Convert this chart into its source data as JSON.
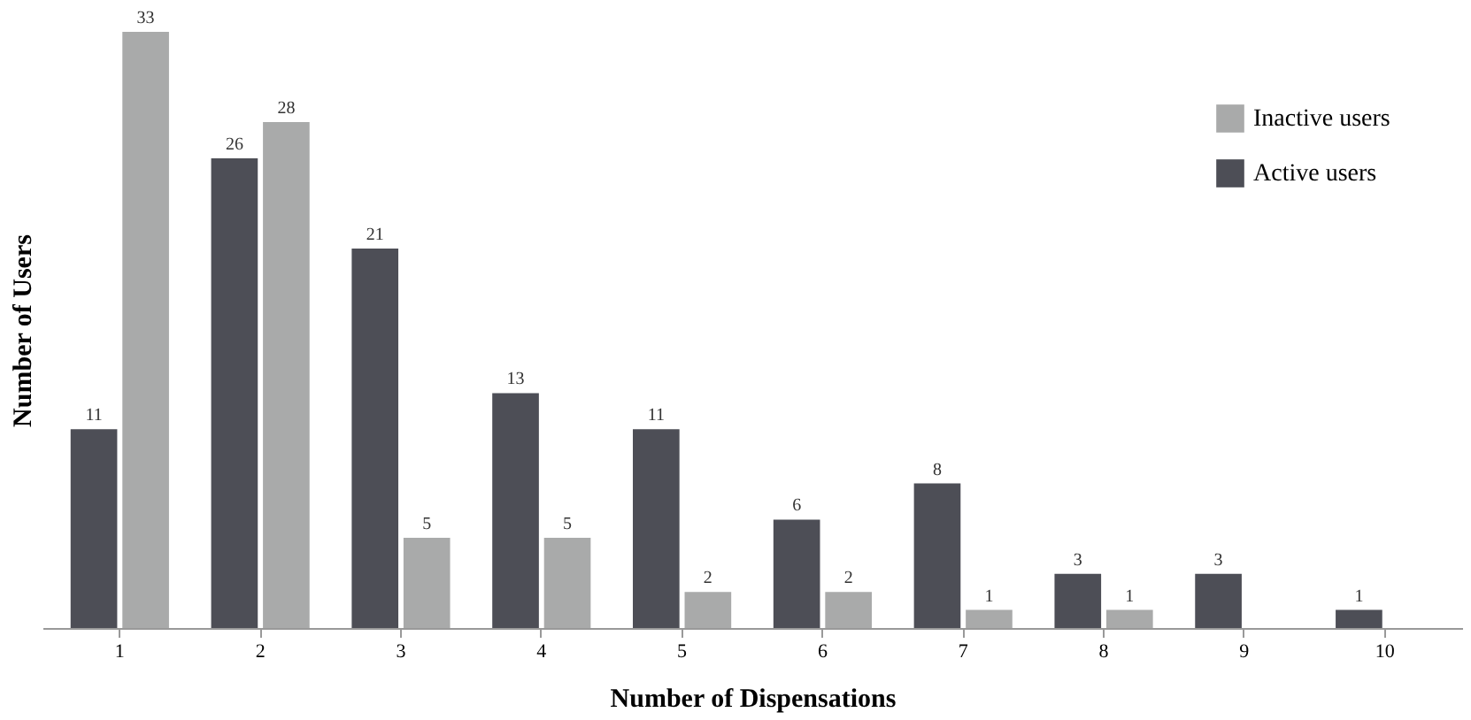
{
  "chart_data": {
    "type": "bar",
    "xlabel": "Number of Dispensations",
    "ylabel": "Number of Users",
    "categories": [
      "1",
      "2",
      "3",
      "4",
      "5",
      "6",
      "7",
      "8",
      "9",
      "10"
    ],
    "series": [
      {
        "name": "Active users",
        "color": "#4d4e56",
        "values": [
          11,
          26,
          21,
          13,
          11,
          6,
          8,
          3,
          3,
          1
        ]
      },
      {
        "name": "Inactive users",
        "color": "#a9aaaa",
        "values": [
          33,
          28,
          5,
          5,
          2,
          2,
          1,
          1,
          null,
          null
        ]
      }
    ],
    "data_labels": true,
    "legend": "top right",
    "grid": false
  }
}
